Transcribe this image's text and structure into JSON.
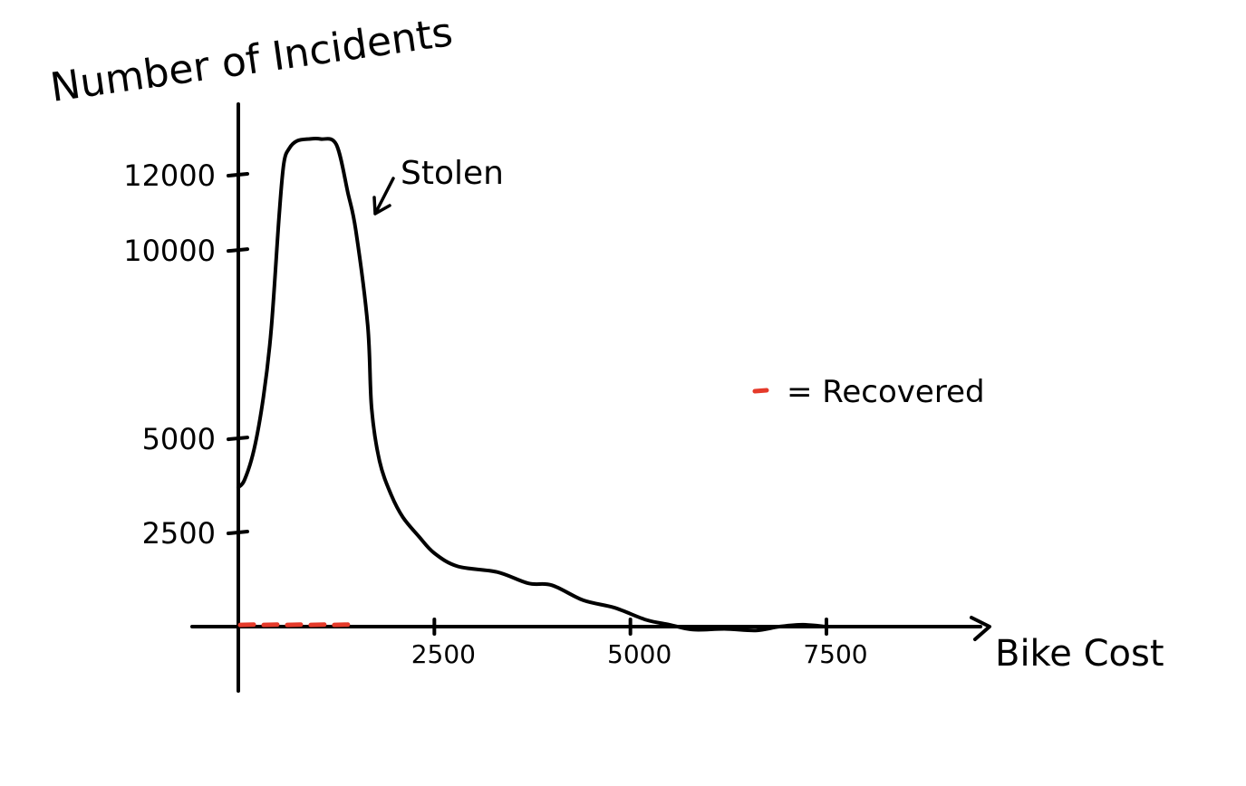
{
  "chart_data": {
    "type": "line",
    "title": "",
    "xlabel": "Bike Cost",
    "ylabel": "Number of Incidents",
    "xlim": [
      0,
      9500
    ],
    "ylim": [
      -1600,
      15200
    ],
    "x_ticks": [
      2500,
      5000,
      7500
    ],
    "x_tick_labels": [
      "2500",
      "5000",
      "7500"
    ],
    "y_ticks": [
      2500,
      5000,
      10000,
      12000
    ],
    "y_tick_labels": [
      "2500",
      "5000",
      "10000",
      "12000"
    ],
    "grid": false,
    "series": [
      {
        "name": "Stolen",
        "color": "#000000",
        "x": [
          0,
          80,
          200,
          320,
          420,
          520,
          580,
          650,
          750,
          900,
          1050,
          1250,
          1400,
          1500,
          1650,
          1700,
          1800,
          1950,
          2100,
          2300,
          2500,
          2800,
          3300,
          3700,
          4000,
          4400,
          4800,
          5200,
          5500,
          5800,
          6200,
          6600,
          6900,
          7200,
          7500
        ],
        "y": [
          3700,
          3900,
          4700,
          6100,
          7900,
          10900,
          12300,
          12700,
          12900,
          12950,
          12950,
          12800,
          11500,
          10500,
          8000,
          5800,
          4400,
          3500,
          2900,
          2400,
          1950,
          1600,
          1450,
          1150,
          1100,
          700,
          500,
          180,
          50,
          -80,
          -60,
          -100,
          0,
          50,
          0
        ]
      },
      {
        "name": "Recovered",
        "color": "#e53a2a",
        "x": [
          0,
          150,
          300,
          450,
          600,
          750,
          900,
          1050,
          1200,
          1350
        ],
        "y": [
          20,
          30,
          20,
          30,
          20,
          30,
          20,
          30,
          20,
          30
        ]
      }
    ],
    "annotations": [
      {
        "text": "Stolen",
        "series": "Stolen",
        "x": 1400,
        "y": 12000
      }
    ],
    "legend": {
      "position": "center-right",
      "entries": [
        {
          "symbol_color": "#e53a2a",
          "text": "= Recovered"
        }
      ]
    }
  }
}
